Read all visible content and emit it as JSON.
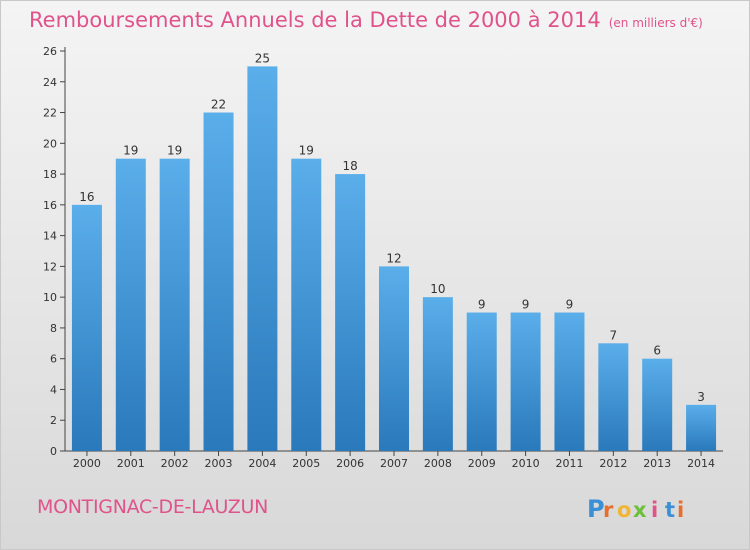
{
  "title": "Remboursements Annuels de la Dette de 2000 à 2014",
  "title_unit": "(en milliers d'€)",
  "commune": "MONTIGNAC-DE-LAUZUN",
  "logo_text": "Proxiti",
  "colors": {
    "title": "#e0538a",
    "bar_top": "#5aaeea",
    "bar_bottom": "#2a79bb",
    "logo_letters": [
      "#3b8fd6",
      "#e66f2e",
      "#f2b531",
      "#6bbf3a",
      "#e0538a",
      "#3b8fd6",
      "#e66f2e"
    ]
  },
  "chart_data": {
    "type": "bar",
    "categories": [
      "2000",
      "2001",
      "2002",
      "2003",
      "2004",
      "2005",
      "2006",
      "2007",
      "2008",
      "2009",
      "2010",
      "2011",
      "2012",
      "2013",
      "2014"
    ],
    "values": [
      16,
      19,
      19,
      22,
      25,
      19,
      18,
      12,
      10,
      9,
      9,
      9,
      7,
      6,
      3
    ],
    "data_labels": [
      "16",
      "19",
      "19",
      "22",
      "25",
      "19",
      "18",
      "12",
      "10",
      "9",
      "9",
      "9",
      "7",
      "6",
      "3"
    ],
    "yticks": [
      "0",
      "2",
      "4",
      "6",
      "8",
      "10",
      "12",
      "14",
      "16",
      "18",
      "20",
      "22",
      "24",
      "26"
    ],
    "ylim": [
      0,
      26
    ],
    "grid": false,
    "legend": "none"
  }
}
